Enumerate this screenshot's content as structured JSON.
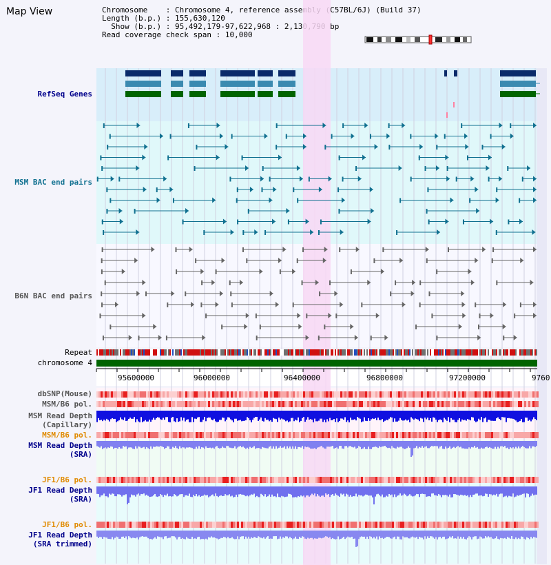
{
  "title": "Map View",
  "info": {
    "chromosome_label": "Chromosome",
    "chromosome_value": "Chromosome 4, reference assembly (C57BL/6J) (Build 37)",
    "length_label": "Length (b.p.)",
    "length_value": "155,630,120",
    "show_label": "Show (b.p.)",
    "show_value": "95,492,179-97,622,968 : 2,130,790 bp",
    "coverage_label": "Read coverage check span",
    "coverage_value": "10,000"
  },
  "tracks": {
    "refseq": "RefSeq Genes",
    "msm_bac": "MSM BAC end pairs",
    "b6n_bac": "B6N BAC end pairs",
    "repeat": "Repeat",
    "chrom": "chromosome 4",
    "dbsnp": "dbSNP(Mouse)",
    "msm_pol": "MSM/B6 pol.",
    "msm_depth_cap_1": "MSM Read Depth",
    "msm_depth_cap_2": "(Capillary)",
    "msm_pol_2": "MSM/B6 pol.",
    "msm_depth_sra_1": "MSM Read Depth",
    "msm_depth_sra_2": "(SRA)",
    "jf1_pol": "JF1/B6 pol.",
    "jf1_depth_1": "JF1 Read Depth",
    "jf1_depth_2": "(SRA)",
    "jf1_pol_2": "JF1/B6 pol.",
    "jf1_trim_1": "JF1 Read Depth",
    "jf1_trim_2": "(SRA trimmed)"
  },
  "axis": {
    "ticks": [
      "95600000",
      "96000000",
      "96400000",
      "96800000",
      "97200000",
      "9760"
    ]
  },
  "colors": {
    "navy_label": "#00008b",
    "teal_label": "#107090",
    "gray_label": "#555555",
    "orange_label": "#e08a00",
    "highlight": "#f8d8f4",
    "chrom_green": "#006400"
  }
}
